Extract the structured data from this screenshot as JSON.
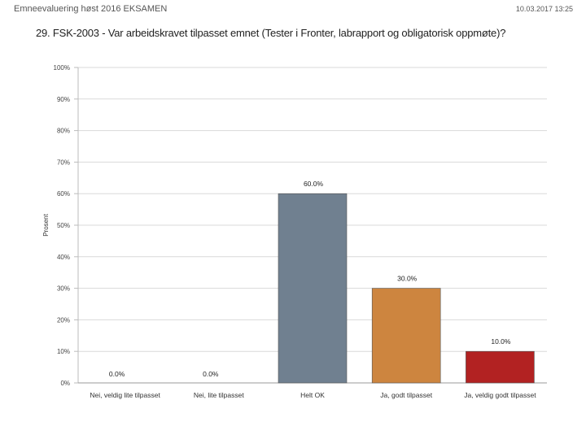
{
  "header": {
    "left": "Emneevaluering høst 2016 EKSAMEN",
    "right": "10.03.2017 13:25"
  },
  "chart_data": {
    "type": "bar",
    "title": "29. FSK-2003 - Var arbeidskravet tilpasset emnet (Tester i Fronter, labrapport og obligatorisk oppmøte)?",
    "xlabel": "",
    "ylabel": "Prosent",
    "ylim": [
      0,
      100
    ],
    "yticks": [
      "0%",
      "10%",
      "20%",
      "30%",
      "40%",
      "50%",
      "60%",
      "70%",
      "80%",
      "90%",
      "100%"
    ],
    "categories": [
      "Nei, veldig lite tilpasset",
      "Nei, lite tilpasset",
      "Helt OK",
      "Ja, godt tilpasset",
      "Ja, veldig godt tilpasset"
    ],
    "values": [
      0,
      0,
      60,
      30,
      10
    ],
    "data_labels": [
      "0.0%",
      "0.0%",
      "60.0%",
      "30.0%",
      "10.0%"
    ],
    "colors": [
      "#708090",
      "#708090",
      "#708090",
      "#CD853F",
      "#B22222"
    ],
    "grid": true
  }
}
